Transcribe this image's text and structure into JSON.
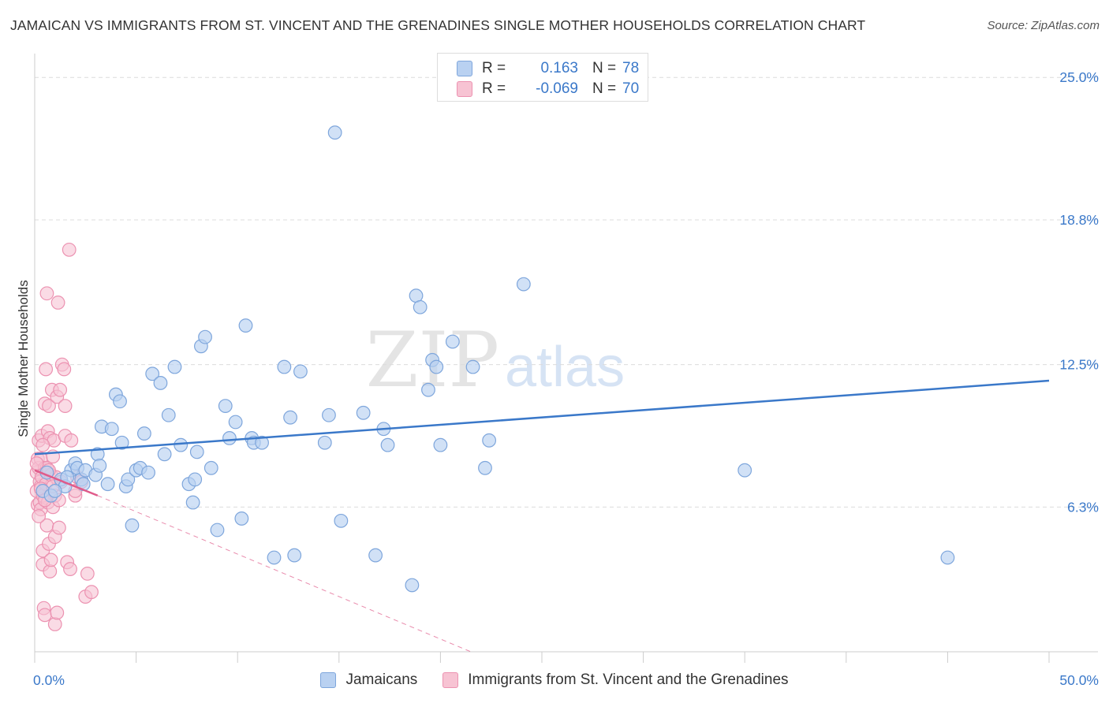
{
  "header": {
    "title": "JAMAICAN VS IMMIGRANTS FROM ST. VINCENT AND THE GRENADINES SINGLE MOTHER HOUSEHOLDS CORRELATION CHART",
    "source": "Source: ZipAtlas.com"
  },
  "watermark": {
    "left": "ZIP",
    "right": "atlas"
  },
  "colors": {
    "blue": "#3a78c9",
    "blue_fill": "#b9d1f1",
    "blue_stroke": "#7ea6dc",
    "pink": "#e05b8a",
    "pink_fill": "#f7c3d3",
    "pink_stroke": "#ec92b1",
    "grid": "#dcdcdc"
  },
  "legend_top": [
    {
      "r_label": "R =",
      "r_value": "0.163",
      "n_label": "N =",
      "n_value": "78"
    },
    {
      "r_label": "R =",
      "r_value": "-0.069",
      "n_label": "N =",
      "n_value": "70"
    }
  ],
  "legend_bottom": [
    "Jamaicans",
    "Immigrants from St. Vincent and the Grenadines"
  ],
  "chart_data": {
    "type": "scatter",
    "xlabel": "",
    "ylabel": "Single Mother Households",
    "xlim": [
      0,
      50
    ],
    "ylim": [
      0,
      25.9
    ],
    "x_tick_labels": [
      {
        "value": 0,
        "label": "0.0%"
      },
      {
        "value": 50,
        "label": "50.0%"
      }
    ],
    "y_tick_labels": [
      {
        "value": 6.3,
        "label": "6.3%"
      },
      {
        "value": 12.5,
        "label": "12.5%"
      },
      {
        "value": 18.8,
        "label": "18.8%"
      },
      {
        "value": 25.0,
        "label": "25.0%"
      }
    ],
    "series": [
      {
        "name": "Jamaicans",
        "r": 0.163,
        "n": 78,
        "trend": {
          "x": [
            0,
            50
          ],
          "y": [
            8.6,
            11.8
          ],
          "x_extend": null
        },
        "points": [
          [
            0.4,
            7.0
          ],
          [
            0.6,
            7.8
          ],
          [
            1.3,
            7.5
          ],
          [
            1.5,
            7.2
          ],
          [
            1.8,
            7.9
          ],
          [
            2.0,
            8.2
          ],
          [
            2.1,
            8.0
          ],
          [
            2.3,
            7.5
          ],
          [
            2.4,
            7.3
          ],
          [
            2.5,
            7.9
          ],
          [
            3.0,
            7.7
          ],
          [
            3.1,
            8.6
          ],
          [
            3.2,
            8.1
          ],
          [
            3.3,
            9.8
          ],
          [
            3.6,
            7.3
          ],
          [
            3.8,
            9.7
          ],
          [
            4.0,
            11.2
          ],
          [
            4.2,
            10.9
          ],
          [
            4.3,
            9.1
          ],
          [
            4.5,
            7.2
          ],
          [
            4.6,
            7.5
          ],
          [
            4.8,
            5.5
          ],
          [
            5.0,
            7.9
          ],
          [
            5.2,
            8.0
          ],
          [
            5.4,
            9.5
          ],
          [
            5.6,
            7.8
          ],
          [
            5.8,
            12.1
          ],
          [
            6.2,
            11.7
          ],
          [
            6.4,
            8.6
          ],
          [
            6.6,
            10.3
          ],
          [
            6.9,
            12.4
          ],
          [
            7.2,
            9.0
          ],
          [
            7.6,
            7.3
          ],
          [
            7.8,
            6.5
          ],
          [
            7.9,
            7.5
          ],
          [
            8.0,
            8.7
          ],
          [
            8.2,
            13.3
          ],
          [
            8.4,
            13.7
          ],
          [
            8.7,
            8.0
          ],
          [
            9.0,
            5.3
          ],
          [
            9.4,
            10.7
          ],
          [
            9.6,
            9.3
          ],
          [
            9.9,
            10.0
          ],
          [
            10.2,
            5.8
          ],
          [
            10.4,
            14.2
          ],
          [
            10.7,
            9.3
          ],
          [
            10.8,
            9.1
          ],
          [
            11.2,
            9.1
          ],
          [
            11.8,
            4.1
          ],
          [
            12.3,
            12.4
          ],
          [
            12.6,
            10.2
          ],
          [
            12.8,
            4.2
          ],
          [
            13.1,
            12.2
          ],
          [
            14.3,
            9.1
          ],
          [
            14.5,
            10.3
          ],
          [
            14.8,
            22.6
          ],
          [
            15.1,
            5.7
          ],
          [
            16.2,
            10.4
          ],
          [
            16.8,
            4.2
          ],
          [
            17.2,
            9.7
          ],
          [
            17.4,
            9.0
          ],
          [
            18.6,
            2.9
          ],
          [
            18.8,
            15.5
          ],
          [
            19.0,
            15.0
          ],
          [
            19.4,
            11.4
          ],
          [
            19.6,
            12.7
          ],
          [
            19.8,
            12.4
          ],
          [
            20.0,
            9.0
          ],
          [
            20.6,
            13.5
          ],
          [
            21.6,
            12.4
          ],
          [
            22.2,
            8.0
          ],
          [
            22.4,
            9.2
          ],
          [
            24.1,
            16.0
          ],
          [
            35.0,
            7.9
          ],
          [
            45.0,
            4.1
          ],
          [
            0.8,
            6.8
          ],
          [
            1.0,
            7.0
          ],
          [
            1.6,
            7.6
          ]
        ]
      },
      {
        "name": "Immigrants from St. Vincent and the Grenadines",
        "r": -0.069,
        "n": 70,
        "trend": {
          "x": [
            0,
            3.1
          ],
          "y": [
            7.9,
            6.8
          ],
          "x_extend": [
            3.1,
            21.5
          ],
          "y_extend": [
            6.8,
            0.0
          ]
        },
        "points": [
          [
            0.1,
            7.0
          ],
          [
            0.1,
            7.8
          ],
          [
            0.15,
            8.4
          ],
          [
            0.15,
            6.4
          ],
          [
            0.2,
            8.0
          ],
          [
            0.2,
            9.2
          ],
          [
            0.25,
            7.4
          ],
          [
            0.25,
            6.5
          ],
          [
            0.3,
            8.4
          ],
          [
            0.3,
            7.2
          ],
          [
            0.3,
            6.2
          ],
          [
            0.35,
            9.4
          ],
          [
            0.35,
            7.6
          ],
          [
            0.4,
            6.8
          ],
          [
            0.4,
            4.4
          ],
          [
            0.4,
            3.8
          ],
          [
            0.45,
            1.9
          ],
          [
            0.5,
            10.8
          ],
          [
            0.5,
            8.0
          ],
          [
            0.5,
            1.6
          ],
          [
            0.55,
            12.3
          ],
          [
            0.55,
            7.3
          ],
          [
            0.6,
            15.6
          ],
          [
            0.6,
            8.0
          ],
          [
            0.6,
            5.5
          ],
          [
            0.65,
            9.6
          ],
          [
            0.65,
            6.5
          ],
          [
            0.7,
            10.7
          ],
          [
            0.7,
            4.7
          ],
          [
            0.75,
            9.3
          ],
          [
            0.75,
            3.5
          ],
          [
            0.8,
            7.7
          ],
          [
            0.8,
            4.0
          ],
          [
            0.85,
            11.4
          ],
          [
            0.9,
            8.5
          ],
          [
            0.9,
            6.3
          ],
          [
            0.95,
            9.2
          ],
          [
            1.0,
            6.8
          ],
          [
            1.0,
            5.0
          ],
          [
            1.0,
            1.2
          ],
          [
            1.05,
            7.6
          ],
          [
            1.1,
            11.1
          ],
          [
            1.1,
            1.7
          ],
          [
            1.15,
            15.2
          ],
          [
            1.2,
            5.4
          ],
          [
            1.25,
            11.4
          ],
          [
            1.3,
            7.4
          ],
          [
            1.35,
            12.5
          ],
          [
            1.45,
            12.3
          ],
          [
            1.5,
            9.4
          ],
          [
            1.5,
            10.7
          ],
          [
            1.6,
            3.9
          ],
          [
            1.7,
            17.5
          ],
          [
            1.75,
            3.6
          ],
          [
            1.8,
            9.2
          ],
          [
            2.0,
            6.8
          ],
          [
            2.0,
            7.0
          ],
          [
            2.1,
            7.6
          ],
          [
            2.3,
            7.4
          ],
          [
            2.5,
            2.4
          ],
          [
            2.6,
            3.4
          ],
          [
            2.8,
            2.6
          ],
          [
            0.2,
            5.9
          ],
          [
            0.3,
            7.1
          ],
          [
            0.5,
            6.6
          ],
          [
            0.7,
            7.9
          ],
          [
            0.9,
            7.2
          ],
          [
            1.2,
            6.6
          ],
          [
            0.1,
            8.2
          ],
          [
            0.4,
            9.0
          ]
        ]
      }
    ]
  }
}
